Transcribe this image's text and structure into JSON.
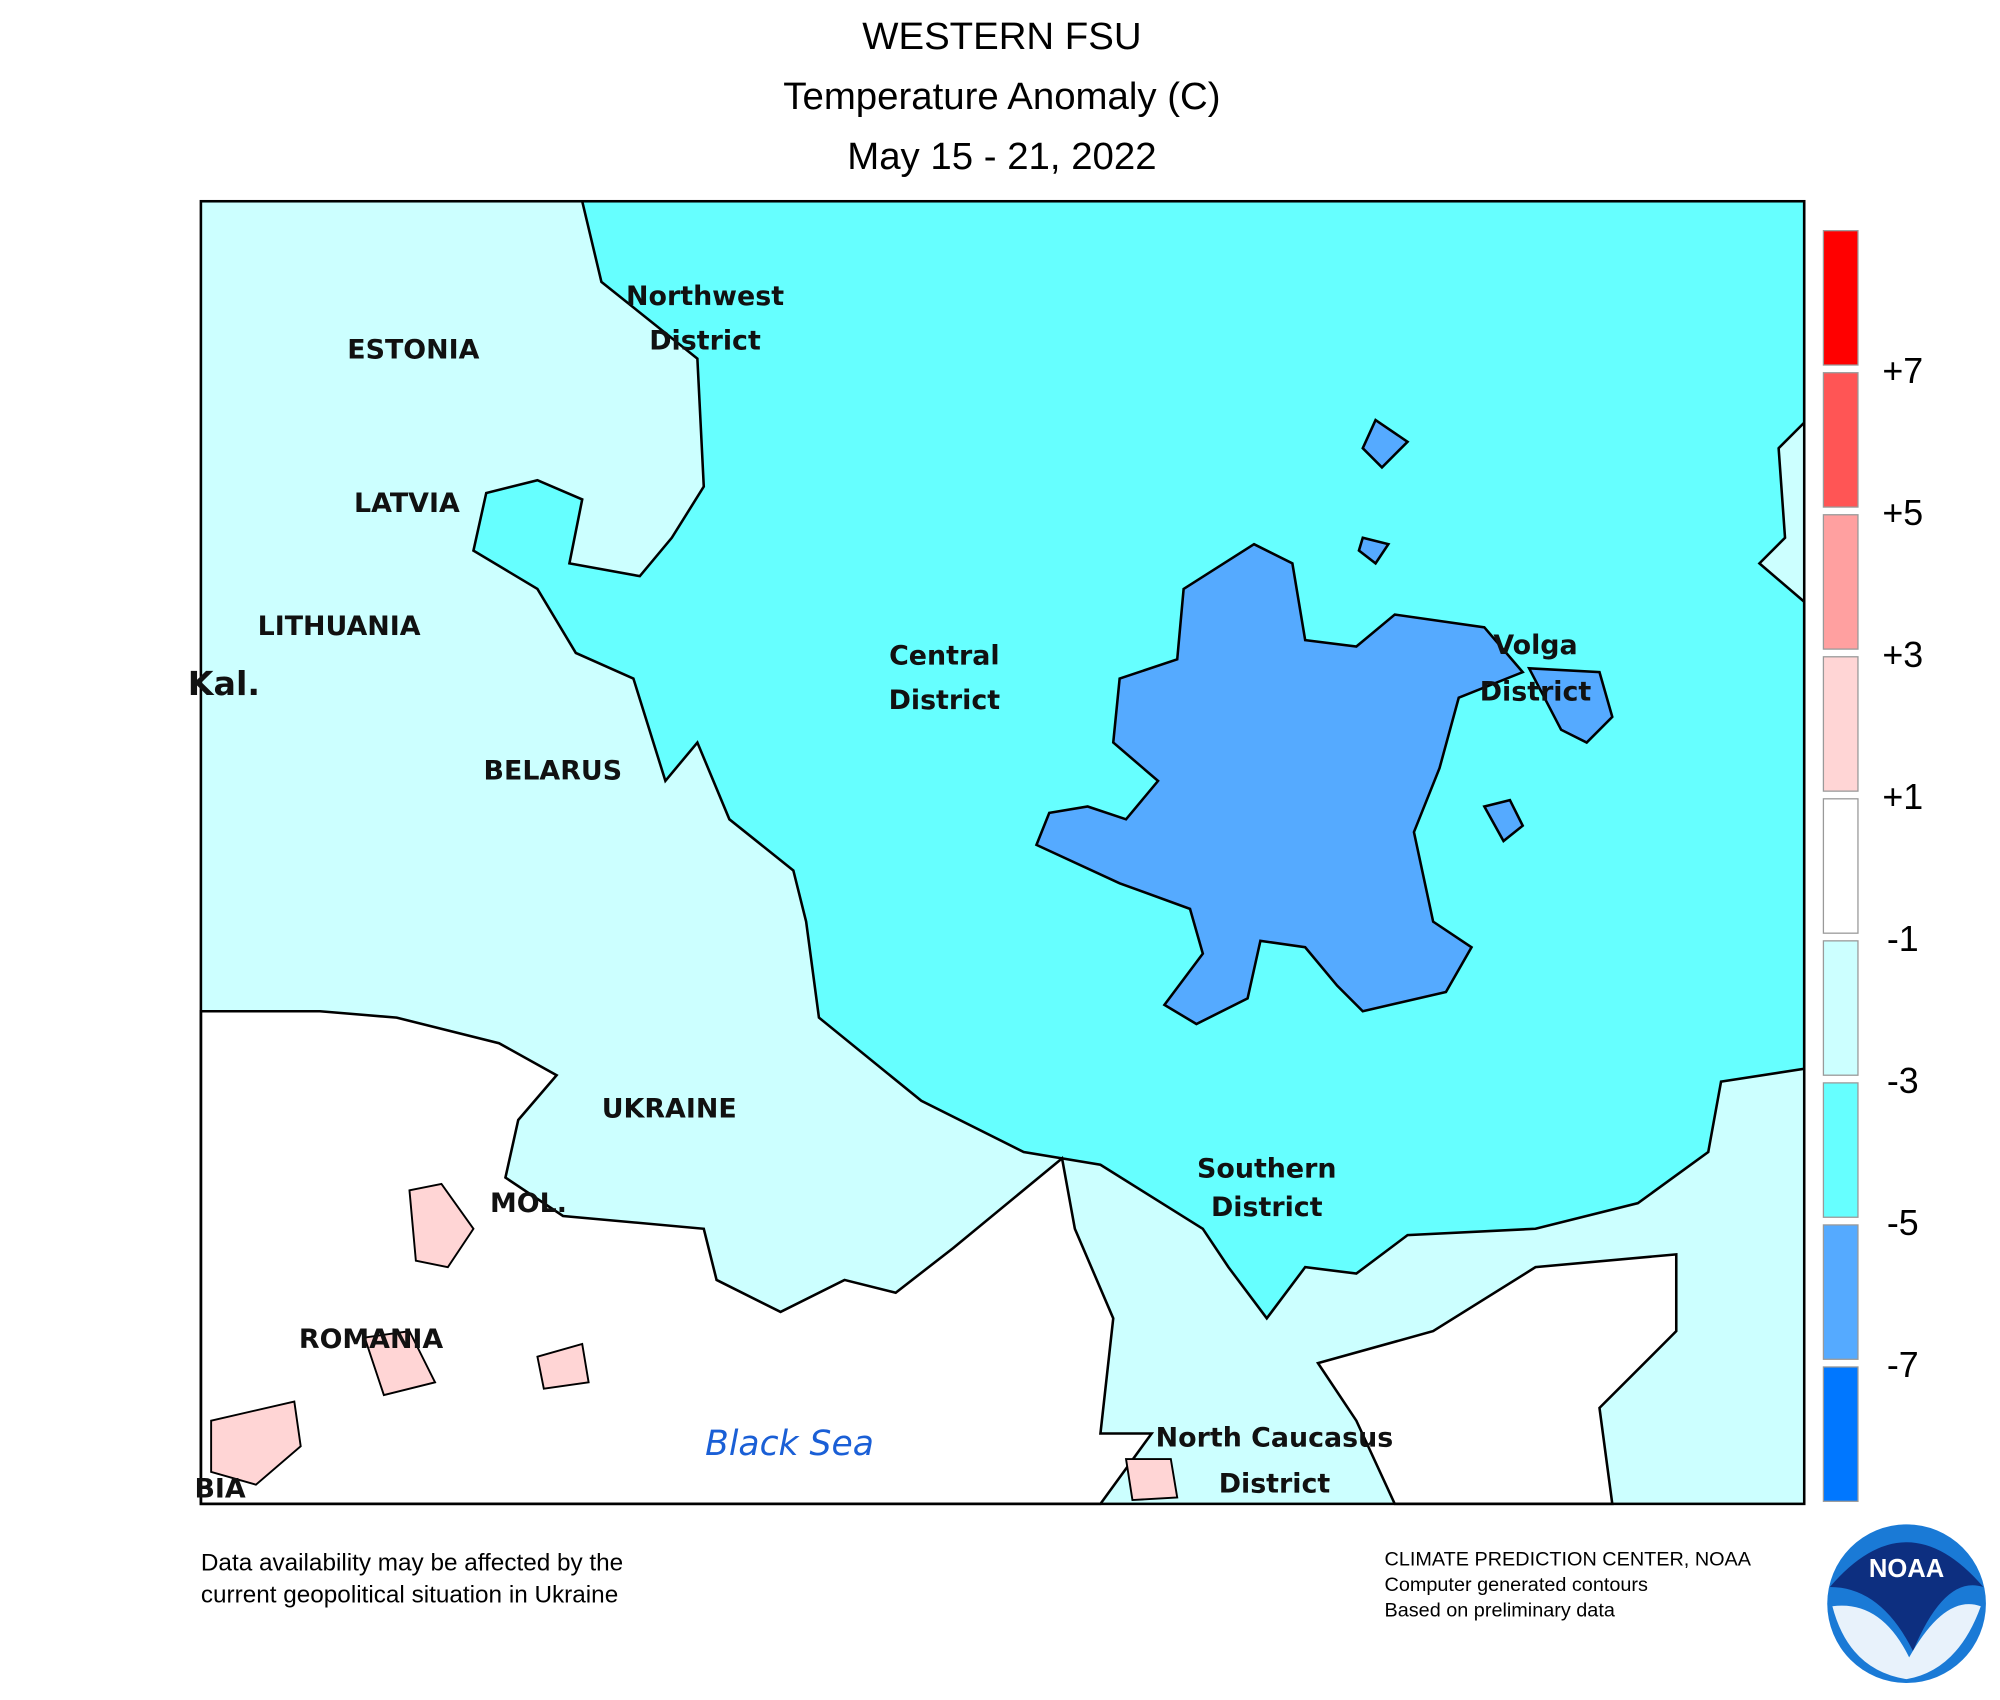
{
  "header": {
    "title": "WESTERN FSU",
    "subtitle": "Temperature Anomaly (C)",
    "dates": "May 15 - 21, 2022"
  },
  "regions": [
    "ESTONIA",
    "LATVIA",
    "LITHUANIA",
    "Kal.",
    "BELARUS",
    "UKRAINE",
    "MOL.",
    "ROMANIA",
    "BIA",
    "Northwest",
    "District",
    "Central",
    "District",
    "Volga",
    "District",
    "Southern",
    "District",
    "North Caucasus",
    "District",
    "Black Sea"
  ],
  "legend": {
    "colors": [
      "#ff0000",
      "#ff5555",
      "#ffa0a0",
      "#ffd5d5",
      "#ffffff",
      "#ccffff",
      "#66ffff",
      "#55aaff",
      "#0077ff"
    ],
    "ticks": [
      "+7",
      "+5",
      "+3",
      "+1",
      "-1",
      "-3",
      "-5",
      "-7"
    ]
  },
  "footer": {
    "note": [
      "Data availability may be affected by the",
      "current geopolitical situation in Ukraine"
    ],
    "credit": [
      "CLIMATE PREDICTION CENTER, NOAA",
      "Computer generated contours",
      "Based on preliminary data"
    ],
    "logo": "NOAA"
  }
}
